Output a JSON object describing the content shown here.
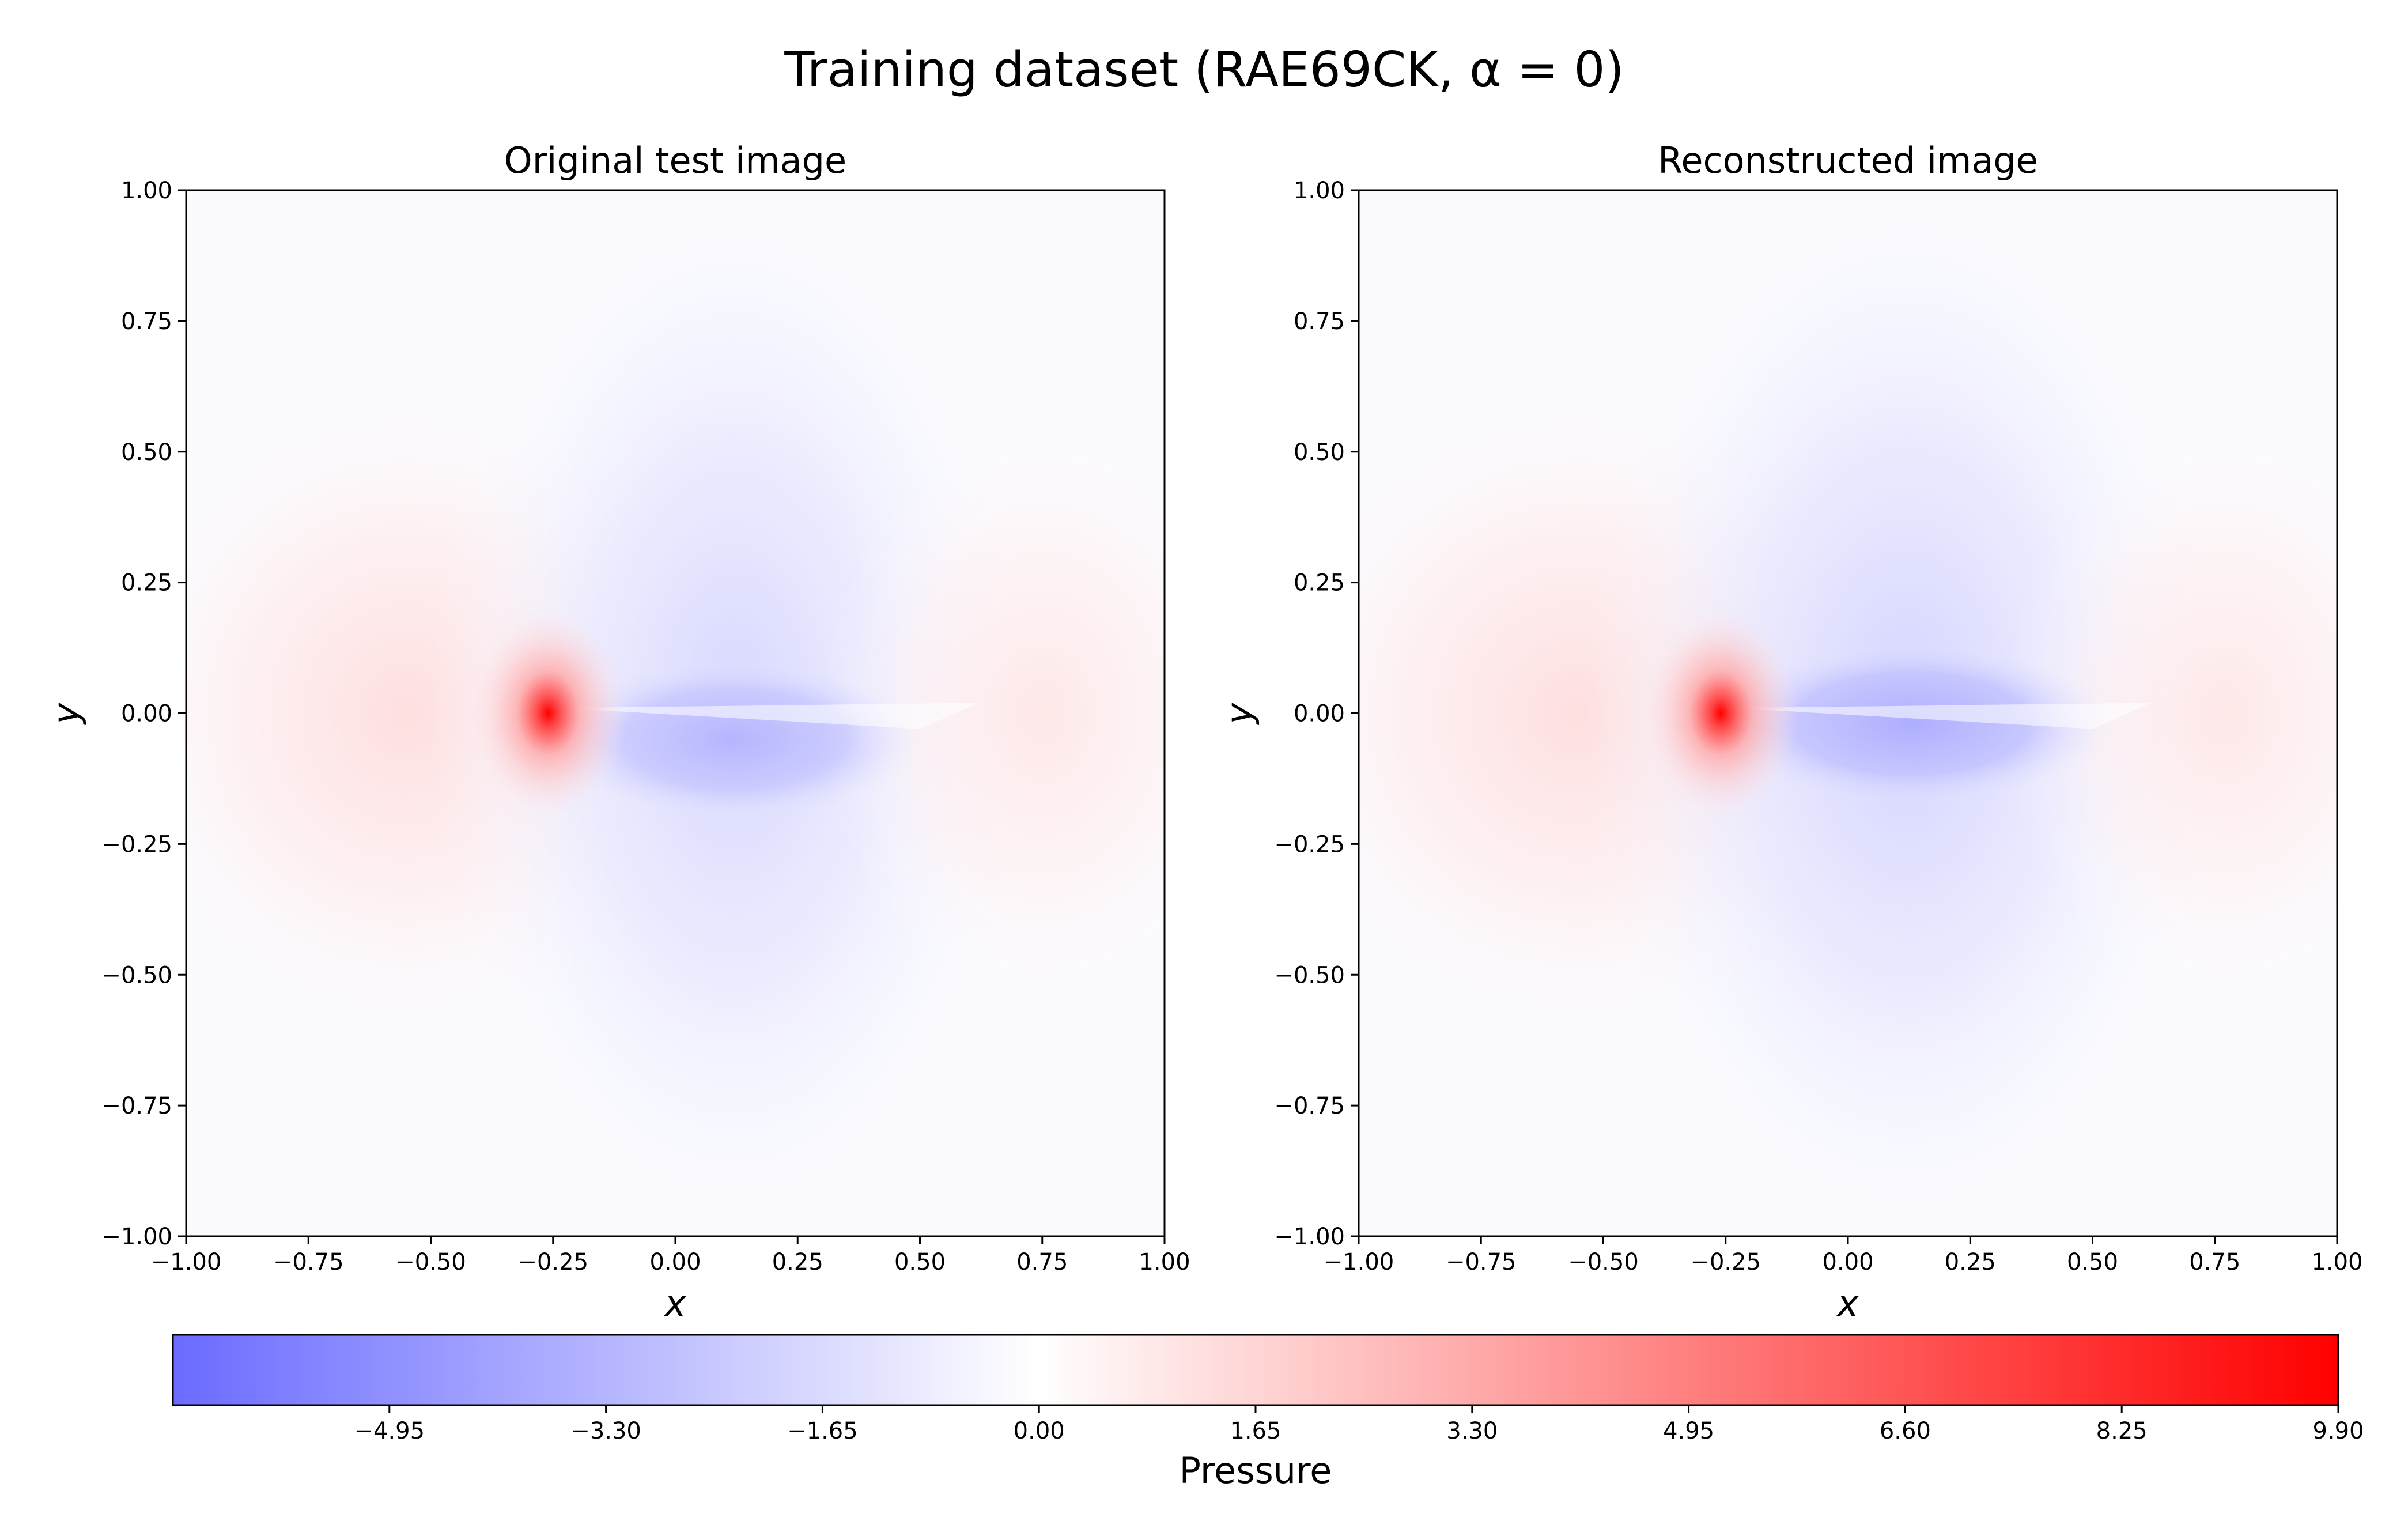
{
  "suptitle": "Training dataset (RAE69CK, α = 0)",
  "colors": {
    "negative": "#6b6bff",
    "zero": "#ffffff",
    "positive": "#ff0000",
    "axes": "#000000"
  },
  "chart_data": [
    {
      "type": "heatmap",
      "title": "Original test image",
      "xlabel": "x",
      "ylabel": "y",
      "xlim": [
        -1.0,
        1.0
      ],
      "ylim": [
        -1.0,
        1.0
      ],
      "xticks": [
        "−1.00",
        "−0.75",
        "−0.50",
        "−0.25",
        "0.00",
        "0.25",
        "0.50",
        "0.75",
        "1.00"
      ],
      "yticks": [
        "−1.00",
        "−0.75",
        "−0.50",
        "−0.25",
        "0.00",
        "0.25",
        "0.50",
        "0.75",
        "1.00"
      ],
      "features": [
        {
          "kind": "stagnation-peak",
          "x": -0.26,
          "y": 0.0,
          "value": 9.9
        },
        {
          "kind": "suction-minimum",
          "x": 0.12,
          "y": -0.05,
          "value": -3.3
        },
        {
          "kind": "trailing-recovery",
          "x": 0.75,
          "y": 0.0,
          "value": 1.0
        }
      ]
    },
    {
      "type": "heatmap",
      "title": "Reconstructed image",
      "xlabel": "x",
      "ylabel": "y",
      "xlim": [
        -1.0,
        1.0
      ],
      "ylim": [
        -1.0,
        1.0
      ],
      "xticks": [
        "−1.00",
        "−0.75",
        "−0.50",
        "−0.25",
        "0.00",
        "0.25",
        "0.50",
        "0.75",
        "1.00"
      ],
      "yticks": [
        "−1.00",
        "−0.75",
        "−0.50",
        "−0.25",
        "0.00",
        "0.25",
        "0.50",
        "0.75",
        "1.00"
      ],
      "features": [
        {
          "kind": "stagnation-peak",
          "x": -0.26,
          "y": 0.0,
          "value": 9.9
        },
        {
          "kind": "suction-minimum",
          "x": 0.13,
          "y": -0.02,
          "value": -3.6
        },
        {
          "kind": "trailing-recovery",
          "x": 0.77,
          "y": 0.0,
          "value": 1.0
        }
      ]
    }
  ],
  "colorbar": {
    "label": "Pressure",
    "range": [
      -6.6,
      9.9
    ],
    "ticks": [
      -4.95,
      -3.3,
      -1.65,
      0.0,
      1.65,
      3.3,
      4.95,
      6.6,
      8.25,
      9.9
    ],
    "tick_labels": [
      "−4.95",
      "−3.30",
      "−1.65",
      "0.00",
      "1.65",
      "3.30",
      "4.95",
      "6.60",
      "8.25",
      "9.90"
    ]
  }
}
